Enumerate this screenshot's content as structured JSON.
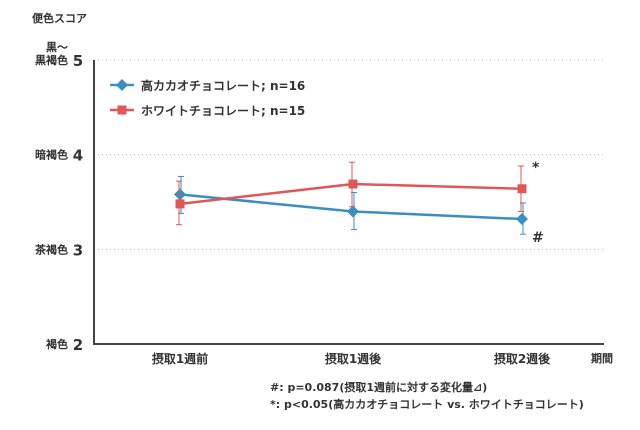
{
  "chart_data": {
    "type": "line",
    "ylabel_title": "便色スコア",
    "xlabel": "期間",
    "ylim": [
      2,
      5
    ],
    "yticks": [
      {
        "value": 5,
        "label": "5",
        "name_lines": [
          "黒～",
          "黒褐色"
        ]
      },
      {
        "value": 4,
        "label": "4",
        "name_lines": [
          "暗褐色"
        ]
      },
      {
        "value": 3,
        "label": "3",
        "name_lines": [
          "茶褐色"
        ]
      },
      {
        "value": 2,
        "label": "2",
        "name_lines": [
          "褐色"
        ]
      }
    ],
    "categories": [
      "摂取1週前",
      "摂取1週後",
      "摂取2週後"
    ],
    "series": [
      {
        "name": "高カカオチョコレート; n=16",
        "color": "#3a8fc0",
        "marker": "diamond",
        "values": [
          3.58,
          3.4,
          3.32
        ],
        "err_low": [
          3.38,
          3.21,
          3.16
        ],
        "err_high": [
          3.77,
          3.6,
          3.49
        ]
      },
      {
        "name": "ホワイトチョコレート; n=15",
        "color": "#e0575a",
        "marker": "square",
        "values": [
          3.48,
          3.69,
          3.64
        ],
        "err_low": [
          3.26,
          3.45,
          3.4
        ],
        "err_high": [
          3.72,
          3.92,
          3.88
        ]
      }
    ],
    "annotations": [
      {
        "text": "*",
        "category": 2,
        "anchor_series": 1
      },
      {
        "text": "#",
        "category": 2,
        "anchor_series": 0
      }
    ],
    "footnotes": [
      "#: p=0.087(摂取1週前に対する変化量⊿)",
      "*: p<0.05(高カカオチョコレート vs. ホワイトチョコレート)"
    ],
    "grid": true,
    "legend_position": "top-left"
  }
}
